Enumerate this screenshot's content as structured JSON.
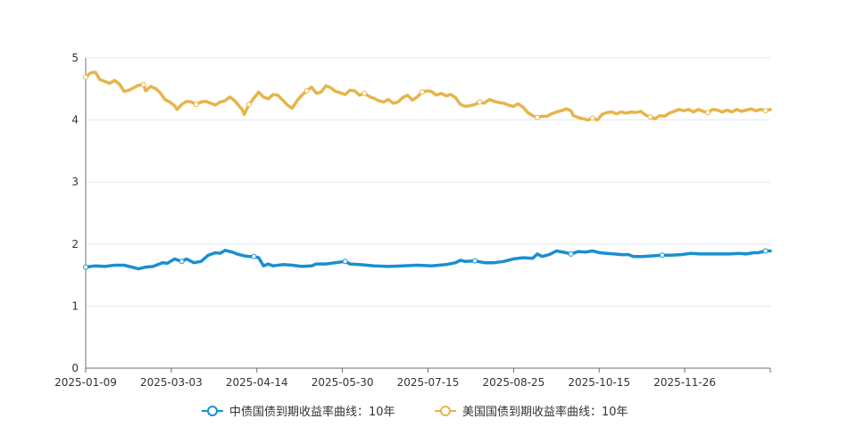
{
  "chart_data": {
    "type": "line",
    "y_ticks": [
      "0",
      "1",
      "2",
      "3",
      "4",
      "5"
    ],
    "x_ticks": [
      "2025-01-09",
      "2025-03-03",
      "2025-04-14",
      "2025-05-30",
      "2025-07-15",
      "2025-08-25",
      "2025-10-15",
      "2025-11-26"
    ],
    "ylim": [
      0,
      5
    ],
    "grid": "horizontal",
    "legend_position": "bottom",
    "series": [
      {
        "name": "中债国债到期收益率曲线：10年",
        "color": "#1a8fd0",
        "points": [
          [
            0,
            1.63
          ],
          [
            4,
            1.65
          ],
          [
            8,
            1.64
          ],
          [
            12,
            1.66
          ],
          [
            16,
            1.66
          ],
          [
            20,
            1.62
          ],
          [
            22,
            1.6
          ],
          [
            25,
            1.63
          ],
          [
            28,
            1.64
          ],
          [
            32,
            1.7
          ],
          [
            34,
            1.69
          ],
          [
            37,
            1.76
          ],
          [
            40,
            1.72
          ],
          [
            42,
            1.76
          ],
          [
            45,
            1.7
          ],
          [
            48,
            1.72
          ],
          [
            51,
            1.82
          ],
          [
            54,
            1.86
          ],
          [
            56,
            1.85
          ],
          [
            58,
            1.9
          ],
          [
            61,
            1.87
          ],
          [
            63,
            1.84
          ],
          [
            66,
            1.81
          ],
          [
            68,
            1.8
          ],
          [
            70,
            1.8
          ],
          [
            72,
            1.78
          ],
          [
            74,
            1.65
          ],
          [
            76,
            1.68
          ],
          [
            78,
            1.65
          ],
          [
            82,
            1.67
          ],
          [
            86,
            1.66
          ],
          [
            90,
            1.64
          ],
          [
            94,
            1.65
          ],
          [
            96,
            1.68
          ],
          [
            100,
            1.68
          ],
          [
            104,
            1.7
          ],
          [
            108,
            1.72
          ],
          [
            110,
            1.68
          ],
          [
            114,
            1.67
          ],
          [
            120,
            1.65
          ],
          [
            126,
            1.64
          ],
          [
            132,
            1.65
          ],
          [
            138,
            1.66
          ],
          [
            144,
            1.65
          ],
          [
            150,
            1.67
          ],
          [
            154,
            1.7
          ],
          [
            156,
            1.74
          ],
          [
            158,
            1.72
          ],
          [
            162,
            1.73
          ],
          [
            166,
            1.7
          ],
          [
            170,
            1.7
          ],
          [
            174,
            1.72
          ],
          [
            178,
            1.76
          ],
          [
            182,
            1.78
          ],
          [
            186,
            1.77
          ],
          [
            188,
            1.84
          ],
          [
            190,
            1.8
          ],
          [
            193,
            1.83
          ],
          [
            196,
            1.89
          ],
          [
            200,
            1.86
          ],
          [
            202,
            1.84
          ],
          [
            205,
            1.88
          ],
          [
            208,
            1.87
          ],
          [
            211,
            1.89
          ],
          [
            214,
            1.86
          ],
          [
            217,
            1.85
          ],
          [
            220,
            1.84
          ],
          [
            223,
            1.83
          ],
          [
            226,
            1.83
          ],
          [
            228,
            1.8
          ],
          [
            232,
            1.8
          ],
          [
            236,
            1.81
          ],
          [
            240,
            1.82
          ],
          [
            244,
            1.82
          ],
          [
            248,
            1.83
          ],
          [
            252,
            1.85
          ],
          [
            256,
            1.84
          ],
          [
            260,
            1.84
          ],
          [
            264,
            1.84
          ],
          [
            268,
            1.84
          ],
          [
            272,
            1.85
          ],
          [
            275,
            1.84
          ],
          [
            278,
            1.86
          ],
          [
            280,
            1.86
          ],
          [
            283,
            1.89
          ],
          [
            285,
            1.89
          ]
        ]
      },
      {
        "name": "美国国债到期收益率曲线：10年",
        "color": "#e6b54a",
        "points": [
          [
            0,
            4.69
          ],
          [
            2,
            4.76
          ],
          [
            4,
            4.77
          ],
          [
            6,
            4.65
          ],
          [
            8,
            4.62
          ],
          [
            10,
            4.59
          ],
          [
            12,
            4.64
          ],
          [
            14,
            4.58
          ],
          [
            16,
            4.46
          ],
          [
            18,
            4.48
          ],
          [
            20,
            4.52
          ],
          [
            22,
            4.56
          ],
          [
            24,
            4.57
          ],
          [
            25,
            4.47
          ],
          [
            27,
            4.54
          ],
          [
            29,
            4.51
          ],
          [
            31,
            4.44
          ],
          [
            33,
            4.33
          ],
          [
            35,
            4.29
          ],
          [
            37,
            4.23
          ],
          [
            38,
            4.17
          ],
          [
            40,
            4.25
          ],
          [
            42,
            4.3
          ],
          [
            44,
            4.29
          ],
          [
            46,
            4.25
          ],
          [
            48,
            4.29
          ],
          [
            50,
            4.3
          ],
          [
            52,
            4.27
          ],
          [
            54,
            4.24
          ],
          [
            56,
            4.29
          ],
          [
            58,
            4.31
          ],
          [
            60,
            4.37
          ],
          [
            62,
            4.31
          ],
          [
            64,
            4.22
          ],
          [
            65,
            4.18
          ],
          [
            66,
            4.09
          ],
          [
            68,
            4.25
          ],
          [
            70,
            4.35
          ],
          [
            72,
            4.45
          ],
          [
            74,
            4.37
          ],
          [
            76,
            4.34
          ],
          [
            78,
            4.41
          ],
          [
            80,
            4.4
          ],
          [
            82,
            4.32
          ],
          [
            84,
            4.24
          ],
          [
            86,
            4.19
          ],
          [
            88,
            4.31
          ],
          [
            90,
            4.4
          ],
          [
            92,
            4.47
          ],
          [
            94,
            4.53
          ],
          [
            96,
            4.43
          ],
          [
            98,
            4.45
          ],
          [
            100,
            4.55
          ],
          [
            102,
            4.52
          ],
          [
            104,
            4.46
          ],
          [
            106,
            4.44
          ],
          [
            108,
            4.41
          ],
          [
            110,
            4.48
          ],
          [
            112,
            4.47
          ],
          [
            114,
            4.4
          ],
          [
            116,
            4.43
          ],
          [
            118,
            4.38
          ],
          [
            120,
            4.35
          ],
          [
            122,
            4.31
          ],
          [
            124,
            4.29
          ],
          [
            126,
            4.33
          ],
          [
            128,
            4.27
          ],
          [
            130,
            4.29
          ],
          [
            132,
            4.36
          ],
          [
            134,
            4.4
          ],
          [
            136,
            4.32
          ],
          [
            138,
            4.37
          ],
          [
            140,
            4.45
          ],
          [
            142,
            4.47
          ],
          [
            144,
            4.46
          ],
          [
            146,
            4.4
          ],
          [
            148,
            4.43
          ],
          [
            150,
            4.39
          ],
          [
            152,
            4.41
          ],
          [
            154,
            4.36
          ],
          [
            156,
            4.25
          ],
          [
            158,
            4.22
          ],
          [
            160,
            4.23
          ],
          [
            162,
            4.25
          ],
          [
            164,
            4.29
          ],
          [
            166,
            4.27
          ],
          [
            168,
            4.33
          ],
          [
            170,
            4.3
          ],
          [
            172,
            4.28
          ],
          [
            174,
            4.27
          ],
          [
            176,
            4.24
          ],
          [
            178,
            4.22
          ],
          [
            180,
            4.26
          ],
          [
            182,
            4.21
          ],
          [
            184,
            4.12
          ],
          [
            186,
            4.07
          ],
          [
            188,
            4.04
          ],
          [
            190,
            4.06
          ],
          [
            192,
            4.06
          ],
          [
            194,
            4.1
          ],
          [
            196,
            4.13
          ],
          [
            198,
            4.15
          ],
          [
            200,
            4.18
          ],
          [
            202,
            4.15
          ],
          [
            203,
            4.07
          ],
          [
            205,
            4.04
          ],
          [
            207,
            4.02
          ],
          [
            209,
            4.0
          ],
          [
            211,
            4.03
          ],
          [
            213,
            4.0
          ],
          [
            215,
            4.09
          ],
          [
            217,
            4.12
          ],
          [
            219,
            4.13
          ],
          [
            221,
            4.1
          ],
          [
            223,
            4.13
          ],
          [
            225,
            4.11
          ],
          [
            227,
            4.13
          ],
          [
            229,
            4.12
          ],
          [
            231,
            4.14
          ],
          [
            233,
            4.08
          ],
          [
            235,
            4.05
          ],
          [
            237,
            4.02
          ],
          [
            239,
            4.07
          ],
          [
            241,
            4.06
          ],
          [
            243,
            4.11
          ],
          [
            245,
            4.14
          ],
          [
            247,
            4.17
          ],
          [
            249,
            4.15
          ],
          [
            251,
            4.17
          ],
          [
            253,
            4.13
          ],
          [
            255,
            4.17
          ],
          [
            257,
            4.14
          ],
          [
            259,
            4.12
          ],
          [
            261,
            4.17
          ],
          [
            263,
            4.16
          ],
          [
            265,
            4.13
          ],
          [
            267,
            4.16
          ],
          [
            269,
            4.13
          ],
          [
            271,
            4.17
          ],
          [
            273,
            4.14
          ],
          [
            275,
            4.16
          ],
          [
            277,
            4.18
          ],
          [
            279,
            4.15
          ],
          [
            281,
            4.17
          ],
          [
            283,
            4.15
          ],
          [
            285,
            4.17
          ]
        ]
      }
    ]
  }
}
